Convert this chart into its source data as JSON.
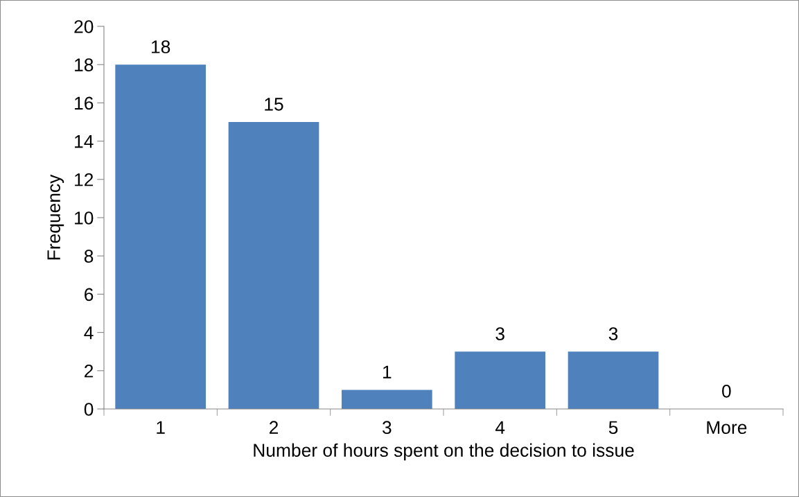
{
  "chart_data": {
    "type": "bar",
    "xlabel": "Number of hours spent on the decision to issue",
    "ylabel": "Frequency",
    "categories": [
      "1",
      "2",
      "3",
      "4",
      "5",
      "More"
    ],
    "values": [
      18,
      15,
      1,
      3,
      3,
      0
    ],
    "color": "#4f81bd",
    "ylim": [
      0,
      20
    ],
    "yticks": [
      0,
      2,
      4,
      6,
      8,
      10,
      12,
      14,
      16,
      18,
      20
    ],
    "data_labels": true
  }
}
